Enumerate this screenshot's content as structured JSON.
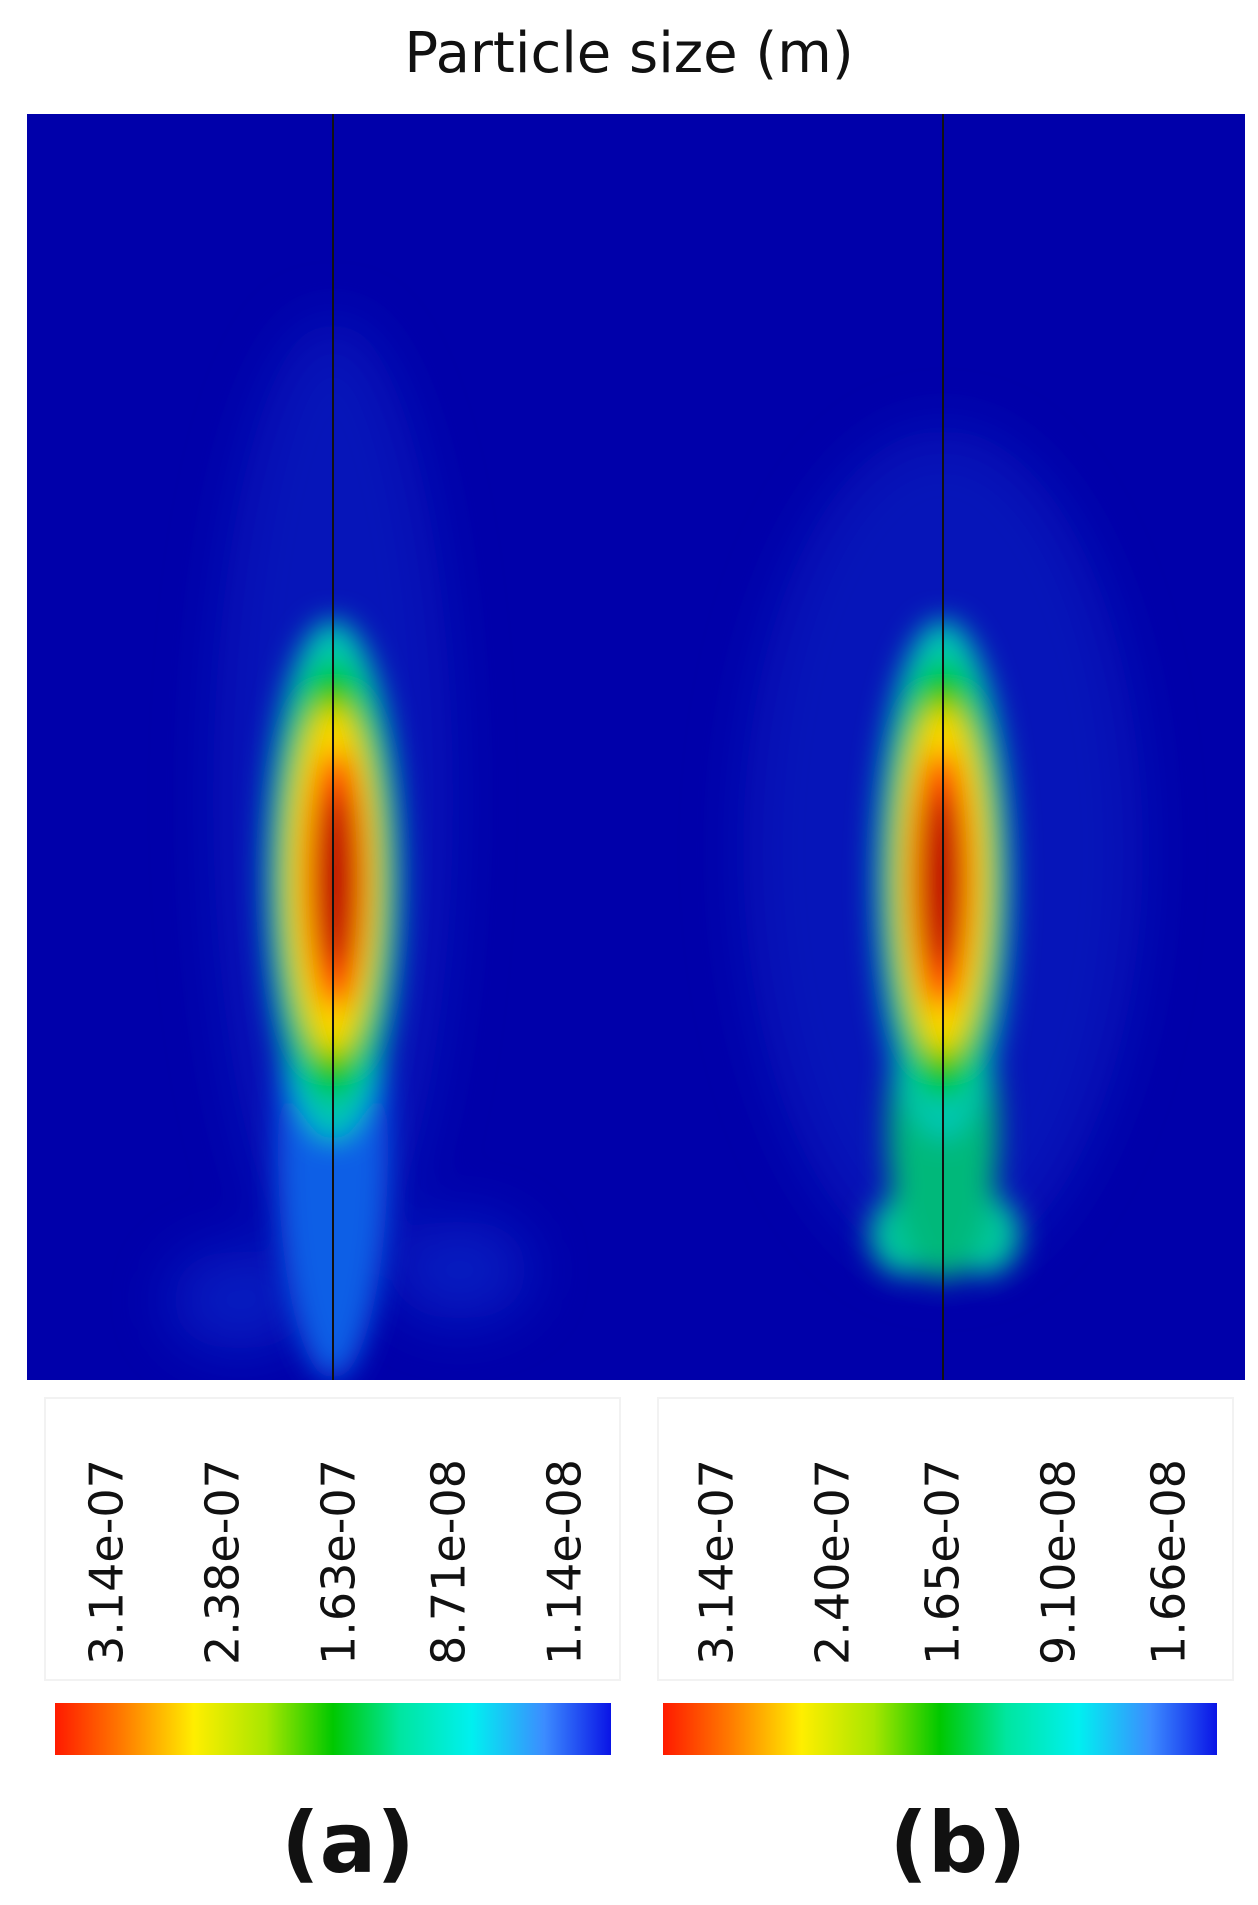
{
  "title": "Particle size (m)",
  "panels": [
    {
      "label": "(a)",
      "colorbar_labels": [
        "3.14e-07",
        "2.38e-07",
        "1.63e-07",
        "8.71e-08",
        "1.14e-08"
      ]
    },
    {
      "label": "(b)",
      "colorbar_labels": [
        "3.14e-07",
        "2.40e-07",
        "1.65e-07",
        "9.10e-08",
        "1.66e-08"
      ]
    }
  ]
}
